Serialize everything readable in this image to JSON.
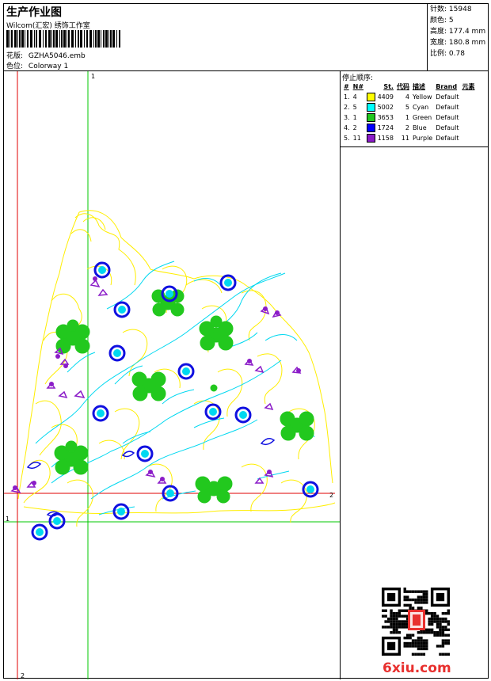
{
  "header": {
    "title": "生产作业图",
    "company": "Wilcom(汇宏) 绣饰工作室",
    "design_label": "花版:",
    "design_value": "GZHA5046.emb",
    "colorway_label": "色位:",
    "colorway_value": "Colorway 1"
  },
  "stats": [
    {
      "label": "针数:",
      "value": "15948"
    },
    {
      "label": "颜色:",
      "value": "5"
    },
    {
      "label": "高度:",
      "value": "177.4 mm"
    },
    {
      "label": "宽度:",
      "value": "180.8 mm"
    },
    {
      "label": "比例:",
      "value": "0.78"
    }
  ],
  "sequence": {
    "caption": "停止顺序:",
    "headers": [
      "#",
      "N#",
      "St.",
      "代码",
      "描述",
      "Brand",
      "元素"
    ],
    "rows": [
      {
        "num": "1.",
        "n": "4",
        "color": "#ffff00",
        "st": "4409",
        "code": "4",
        "desc": "Yellow",
        "brand": "Default"
      },
      {
        "num": "2.",
        "n": "5",
        "color": "#00ffff",
        "st": "5002",
        "code": "5",
        "desc": "Cyan",
        "brand": "Default"
      },
      {
        "num": "3.",
        "n": "1",
        "color": "#22c81e",
        "st": "3653",
        "code": "1",
        "desc": "Green",
        "brand": "Default"
      },
      {
        "num": "4.",
        "n": "2",
        "color": "#0000ff",
        "st": "1724",
        "code": "2",
        "desc": "Blue",
        "brand": "Default"
      },
      {
        "num": "5.",
        "n": "11",
        "color": "#8b1cc8",
        "st": "1158",
        "code": "11",
        "desc": "Purple",
        "brand": "Default"
      }
    ]
  },
  "guides": {
    "green_label": "1",
    "red_label": "2"
  },
  "watermark": "6xiu.com",
  "colors": {
    "yellow": "#ffee00",
    "cyan": "#00d8f0",
    "green": "#22c81e",
    "blue": "#1010e0",
    "purple": "#8b1cc8",
    "red_guide": "#e00000",
    "green_guide": "#00c800"
  }
}
